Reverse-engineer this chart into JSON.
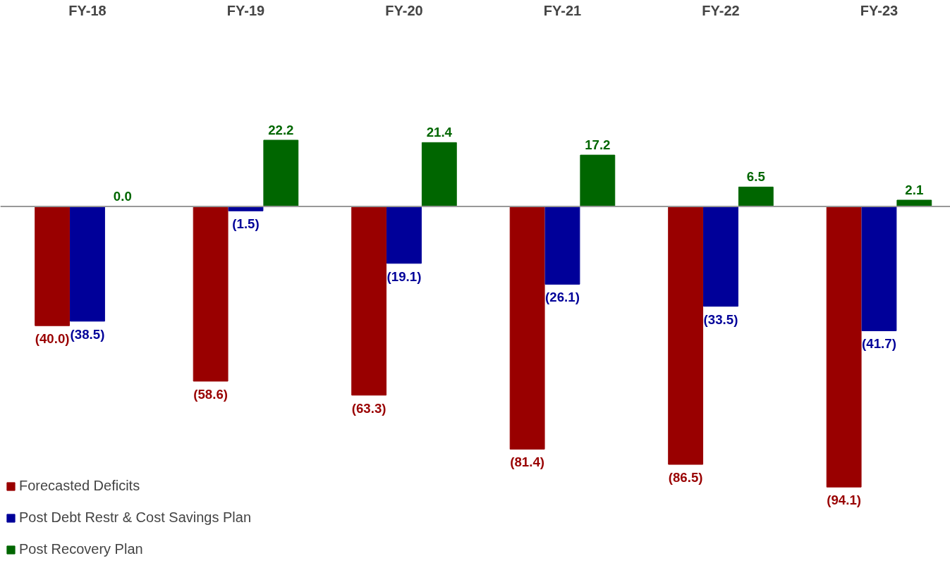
{
  "chart_data": {
    "type": "bar",
    "categories": [
      "FY-18",
      "FY-19",
      "FY-20",
      "FY-21",
      "FY-22",
      "FY-23"
    ],
    "series": [
      {
        "name": "Forecasted Deficits",
        "color": "#990000",
        "values": [
          -40.0,
          -58.6,
          -63.3,
          -81.4,
          -86.5,
          -94.1
        ],
        "value_labels": [
          "(40.0)",
          "(58.6)",
          "(63.3)",
          "(81.4)",
          "(86.5)",
          "(94.1)"
        ]
      },
      {
        "name": "Post Debt Restr & Cost Savings Plan",
        "color": "#000099",
        "values": [
          -38.5,
          -1.5,
          -19.1,
          -26.1,
          -33.5,
          -41.7
        ],
        "value_labels": [
          "(38.5)",
          "(1.5)",
          "(19.1)",
          "(26.1)",
          "(33.5)",
          "(41.7)"
        ]
      },
      {
        "name": "Post Recovery Plan",
        "color": "#006600",
        "values": [
          0.0,
          22.2,
          21.4,
          17.2,
          6.5,
          2.1
        ],
        "value_labels": [
          "0.0",
          "22.2",
          "21.4",
          "17.2",
          "6.5",
          "2.1"
        ]
      }
    ],
    "legend": "bottom left",
    "tick_labels": "x"
  }
}
